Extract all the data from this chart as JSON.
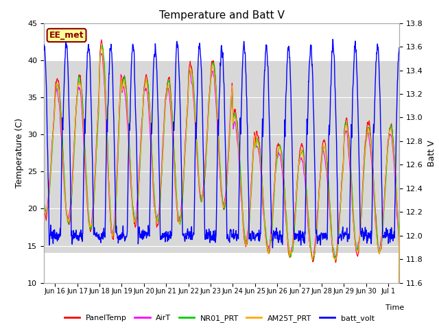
{
  "title": "Temperature and Batt V",
  "xlabel": "Time",
  "ylabel_left": "Temperature (C)",
  "ylabel_right": "Batt V",
  "ylim_left": [
    10,
    45
  ],
  "ylim_right": [
    11.6,
    13.8
  ],
  "annotation": "EE_met",
  "line_colors": {
    "PanelTemp": "#ff0000",
    "AirT": "#ff00ff",
    "NR01_PRT": "#00cc00",
    "AM25T_PRT": "#ffaa00",
    "batt_volt": "#0000ff"
  },
  "line_widths": {
    "PanelTemp": 0.8,
    "AirT": 0.8,
    "NR01_PRT": 0.8,
    "AM25T_PRT": 0.8,
    "batt_volt": 1.0
  },
  "x_tick_labels": [
    "Jun 16",
    "Jun 17",
    "Jun 18",
    "Jun 19",
    "Jun 20",
    "Jun 21",
    "Jun 22",
    "Jun 23",
    "Jun 24",
    "Jun 25",
    "Jun 26",
    "Jun 27",
    "Jun 28",
    "Jun 29",
    "Jun 30",
    "Jul 1"
  ],
  "shade_ylim": [
    14.0,
    40.0
  ],
  "bg_color": "#ffffff",
  "shade_color": "#d8d8d8",
  "annotation_bg": "#ffff99",
  "annotation_edge": "#8b0000",
  "annotation_text_color": "#8b0000",
  "figsize": [
    6.4,
    4.8
  ],
  "dpi": 100
}
